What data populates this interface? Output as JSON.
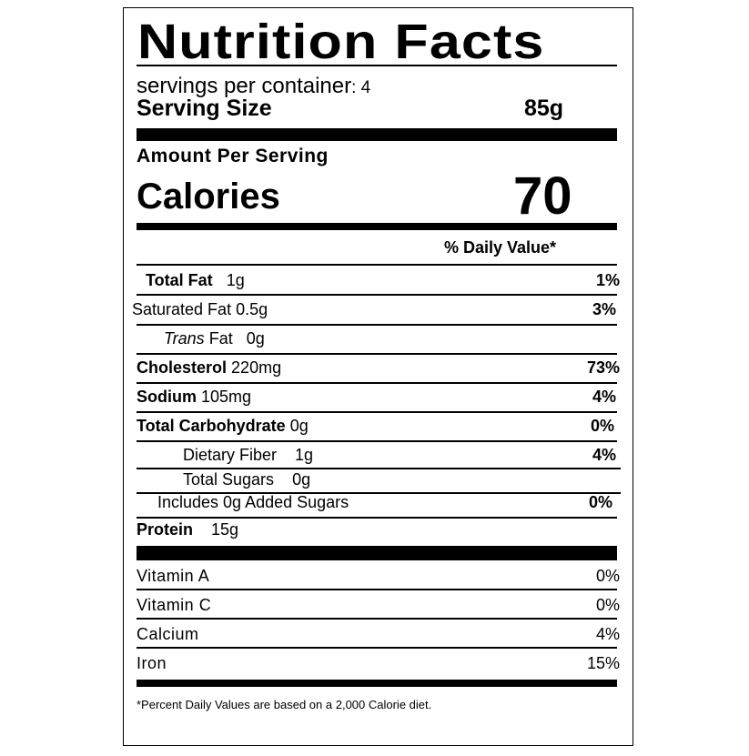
{
  "header": {
    "title": "Nutrition Facts",
    "servings_label": "servings per container",
    "servings_value": ": 4",
    "serving_size_label": "Serving Size",
    "serving_size_value": "85g"
  },
  "calories": {
    "amount_label": "Amount Per Serving",
    "label": "Calories",
    "value": "70"
  },
  "dv_header": "% Daily Value*",
  "nutrients": {
    "total_fat": {
      "label": "Total Fat",
      "amount": "1g",
      "dv": "1%"
    },
    "saturated_fat": {
      "label": "Saturated Fat 0.5g",
      "dv": "3%"
    },
    "trans_fat": {
      "label_italic": "Trans",
      "label": "Fat",
      "amount": "0g"
    },
    "cholesterol": {
      "label": "Cholesterol",
      "amount": "220mg",
      "dv": "73%"
    },
    "sodium": {
      "label": "Sodium",
      "amount": "105mg",
      "dv": "4%"
    },
    "total_carb": {
      "label": "Total Carbohydrate",
      "amount": "0g",
      "dv": "0%"
    },
    "dietary_fiber": {
      "label": "Dietary Fiber",
      "amount": "1g",
      "dv": "4%"
    },
    "total_sugars": {
      "label": "Total Sugars",
      "amount": "0g"
    },
    "added_sugars": {
      "label": "Includes 0g Added Sugars",
      "dv": "0%"
    },
    "protein": {
      "label": "Protein",
      "amount": "15g"
    }
  },
  "vitamins": [
    {
      "label": "Vitamin A",
      "dv": "0%"
    },
    {
      "label": "Vitamin C",
      "dv": "0%"
    },
    {
      "label": "Calcium",
      "dv": "4%"
    },
    {
      "label": "Iron",
      "dv": "15%"
    }
  ],
  "footnote": "*Percent Daily Values are based on a 2,000 Calorie diet."
}
